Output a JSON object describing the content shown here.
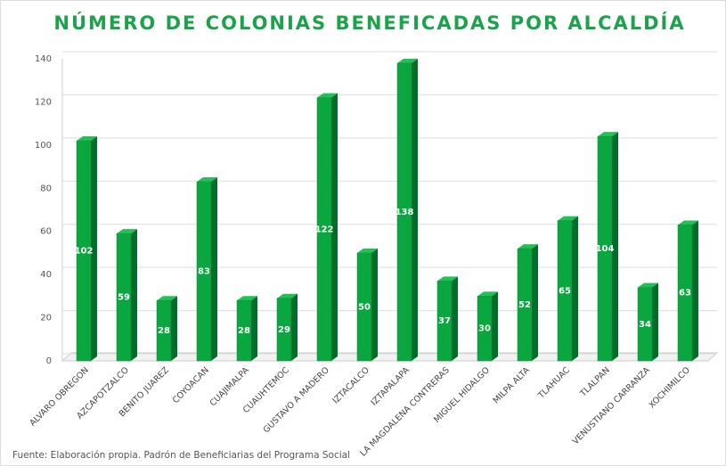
{
  "chart_data": {
    "type": "bar",
    "title": "NÚMERO DE COLONIAS BENEFICADAS POR ALCALDÍA",
    "categories": [
      "ALVARO OBREGON",
      "AZCAPOTZALCO",
      "BENITO JUAREZ",
      "COYOACAN",
      "CUAJIMALPA",
      "CUAUHTEMOC",
      "GUSTAVO A MADERO",
      "IZTACALCO",
      "IZTAPALAPA",
      "LA MAGDALENA CONTRERAS",
      "MIGUEL HIDALGO",
      "MILPA ALTA",
      "TLAHUAC",
      "TLALPAN",
      "VENUSTIANO CARRANZA",
      "XOCHIMILCO"
    ],
    "values": [
      102,
      59,
      28,
      83,
      28,
      29,
      122,
      50,
      138,
      37,
      30,
      52,
      65,
      104,
      34,
      63
    ],
    "color": "#0aa640",
    "ylim": [
      0,
      140
    ],
    "yticks": [
      0,
      20,
      40,
      60,
      80,
      100,
      120,
      140
    ],
    "grid": true,
    "source": "Fuente: Elaboración propia. Padrón de Beneficiarias del Programa Social"
  }
}
